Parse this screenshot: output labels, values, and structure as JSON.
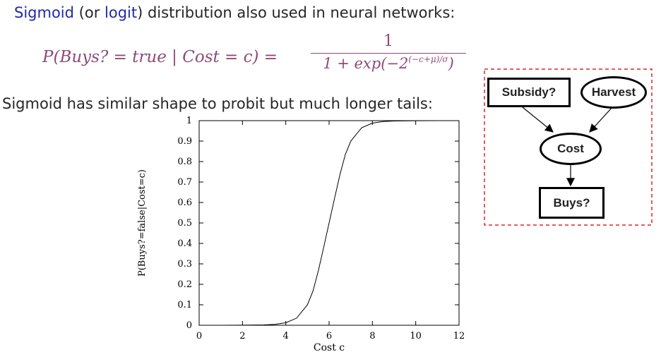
{
  "intro": {
    "sigmoid": "Sigmoid",
    "open_paren": "(or ",
    "logit": "logit",
    "rest": ") distribution also used in neural networks:"
  },
  "formula": {
    "lhs": "P(Buys? = true | Cost = c) =",
    "numerator": "1",
    "denominator_main": "1 + exp(−2",
    "denominator_exp": "(−c+μ)/σ",
    "denominator_close": ")"
  },
  "comparison_text": "Sigmoid has similar shape to probit but much longer tails:",
  "chart_data": {
    "type": "line",
    "xlabel": "Cost c",
    "ylabel": "P(Buys?=false|Cost=c)",
    "xlim": [
      0,
      12
    ],
    "ylim": [
      0,
      1
    ],
    "xticks": [
      0,
      2,
      4,
      6,
      8,
      10,
      12
    ],
    "yticks": [
      0,
      0.1,
      0.2,
      0.3,
      0.4,
      0.5,
      0.6,
      0.7,
      0.8,
      0.9,
      1
    ],
    "ytick_labels": [
      "0",
      "0.1",
      "0.2",
      "0.3",
      "0.4",
      "0.5",
      "0.6",
      "0.7",
      "0.8",
      "0.9",
      "1"
    ],
    "series": [
      {
        "color": "#000000",
        "x": [
          0,
          1,
          2,
          3,
          3.5,
          4,
          4.5,
          5,
          5.25,
          5.5,
          5.75,
          6,
          6.25,
          6.5,
          6.75,
          7,
          7.5,
          8,
          8.5,
          9,
          10,
          11,
          12
        ],
        "y": [
          0,
          0,
          0.0002,
          0.0016,
          0.0045,
          0.012,
          0.035,
          0.1,
          0.165,
          0.265,
          0.38,
          0.5,
          0.62,
          0.735,
          0.835,
          0.9,
          0.965,
          0.988,
          0.9955,
          0.9984,
          0.9998,
          1,
          1
        ]
      }
    ],
    "grid": false
  },
  "network": {
    "border_color": "#e0242a",
    "nodes": {
      "subsidy": "Subsidy?",
      "harvest": "Harvest",
      "cost": "Cost",
      "buys": "Buys?"
    }
  }
}
